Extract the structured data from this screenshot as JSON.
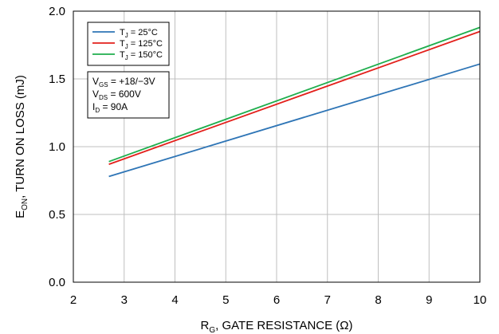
{
  "chart_data": {
    "type": "line",
    "x_range": [
      2,
      10
    ],
    "y_range": [
      0.0,
      2.0
    ],
    "x_ticks": [
      "2",
      "3",
      "4",
      "5",
      "6",
      "7",
      "8",
      "9",
      "10"
    ],
    "y_ticks": [
      "0.0",
      "0.5",
      "1.0",
      "1.5",
      "2.0"
    ],
    "grid": true,
    "xlabel": {
      "main": "R",
      "sub": "G",
      "rest": ", GATE RESISTANCE  (Ω)"
    },
    "ylabel": {
      "main": "E",
      "sub": "ON",
      "rest": ",  TURN ON LOSS  (mJ)"
    },
    "legend_position": "top-left",
    "series": [
      {
        "label_main": "T",
        "label_sub": "J",
        "label_rest": " = 25°C",
        "color": "#2e75b6",
        "x": [
          2.7,
          10
        ],
        "y": [
          0.78,
          1.61
        ]
      },
      {
        "label_main": "T",
        "label_sub": "J",
        "label_rest": " = 125°C",
        "color": "#e3201b",
        "x": [
          2.7,
          10
        ],
        "y": [
          0.87,
          1.85
        ]
      },
      {
        "label_main": "T",
        "label_sub": "J",
        "label_rest": " = 150°C",
        "color": "#1fae4d",
        "x": [
          2.7,
          10
        ],
        "y": [
          0.89,
          1.88
        ]
      }
    ],
    "conditions": [
      {
        "main": "V",
        "sub": "GS",
        "rest": " = +18/−3V"
      },
      {
        "main": "V",
        "sub": "DS",
        "rest": " = 600V"
      },
      {
        "main": "I",
        "sub": "D",
        "rest": " = 90A"
      }
    ]
  }
}
